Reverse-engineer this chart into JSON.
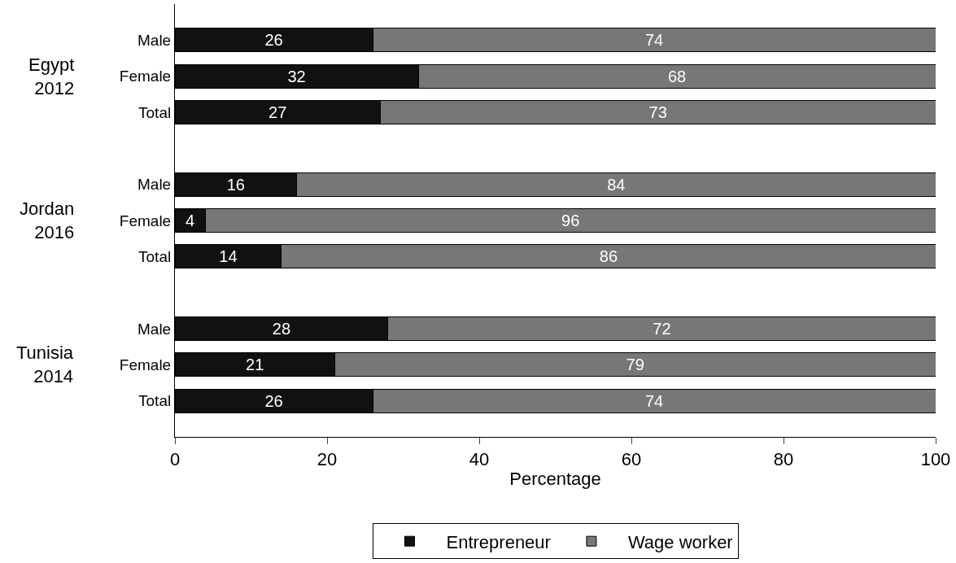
{
  "chart_data": {
    "type": "bar",
    "orientation": "horizontal",
    "stacked": true,
    "data_labels": true,
    "xlabel": "Percentage",
    "xlim": [
      0,
      100
    ],
    "xticks": [
      0,
      20,
      40,
      60,
      80,
      100
    ],
    "legend": "bottom",
    "categories": [
      "Male",
      "Female",
      "Total",
      null,
      "Male",
      "Female",
      "Total",
      null,
      "Male",
      "Female",
      "Total"
    ],
    "annotations": [
      "Egypt\n2012",
      "Jordan\n2016",
      "Tunisia\n2014"
    ],
    "series": [
      {
        "name": "Entrepreneur",
        "color": "#111111",
        "values": [
          26,
          32,
          27,
          null,
          16,
          4,
          14,
          null,
          28,
          21,
          26
        ]
      },
      {
        "name": "Wage worker",
        "color": "#777777",
        "values": [
          74,
          68,
          73,
          null,
          84,
          96,
          86,
          null,
          72,
          79,
          74
        ]
      }
    ]
  }
}
